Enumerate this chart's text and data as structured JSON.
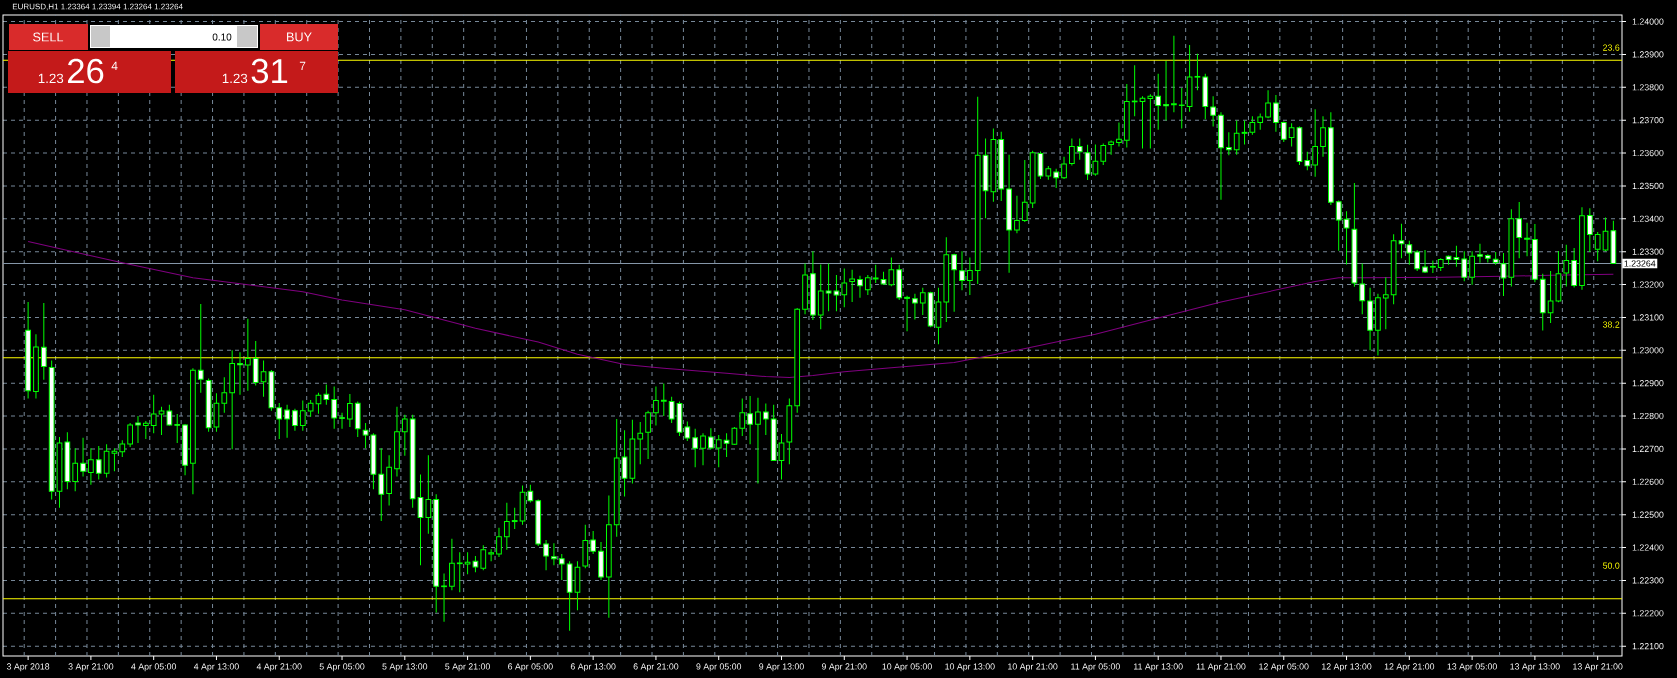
{
  "chart_data": {
    "type": "candlestick",
    "title": "EURUSD,H1  1.23364 1.23394 1.23264 1.23264",
    "color": "#00ff00",
    "categories": [
      "3 Apr 2018",
      null,
      null,
      null,
      null,
      null,
      null,
      null,
      "3 Apr 21:00",
      null,
      null,
      null,
      null,
      null,
      null,
      null,
      "4 Apr 05:00",
      null,
      null,
      null,
      null,
      null,
      null,
      null,
      "4 Apr 13:00",
      null,
      null,
      null,
      null,
      null,
      null,
      null,
      "4 Apr 21:00",
      null,
      null,
      null,
      null,
      null,
      null,
      null,
      "5 Apr 05:00",
      null,
      null,
      null,
      null,
      null,
      null,
      null,
      "5 Apr 13:00",
      null,
      null,
      null,
      null,
      null,
      null,
      null,
      "5 Apr 21:00",
      null,
      null,
      null,
      null,
      null,
      null,
      null,
      "6 Apr 05:00",
      null,
      null,
      null,
      null,
      null,
      null,
      null,
      "6 Apr 13:00",
      null,
      null,
      null,
      null,
      null,
      null,
      null,
      "6 Apr 21:00",
      null,
      null,
      null,
      null,
      null,
      null,
      null,
      "9 Apr 05:00",
      null,
      null,
      null,
      null,
      null,
      null,
      null,
      "9 Apr 13:00",
      null,
      null,
      null,
      null,
      null,
      null,
      null,
      "9 Apr 21:00",
      null,
      null,
      null,
      null,
      null,
      null,
      null,
      "10 Apr 05:00",
      null,
      null,
      null,
      null,
      null,
      null,
      null,
      "10 Apr 13:00",
      null,
      null,
      null,
      null,
      null,
      null,
      null,
      "10 Apr 21:00",
      null,
      null,
      null,
      null,
      null,
      null,
      null,
      "11 Apr 05:00",
      null,
      null,
      null,
      null,
      null,
      null,
      null,
      "11 Apr 13:00",
      null,
      null,
      null,
      null,
      null,
      null,
      null,
      "11 Apr 21:00",
      null,
      null,
      null,
      null,
      null,
      null,
      null,
      "12 Apr 05:00",
      null,
      null,
      null,
      null,
      null,
      null,
      null,
      "12 Apr 13:00",
      null,
      null,
      null,
      null,
      null,
      null,
      null,
      "12 Apr 21:00",
      null,
      null,
      null,
      null,
      null,
      null,
      null,
      "13 Apr 05:00",
      null,
      null,
      null,
      null,
      null,
      null,
      null,
      "13 Apr 13:00",
      null,
      null,
      null,
      null,
      null,
      null,
      null,
      "13 Apr 21:00",
      null,
      null
    ],
    "ohlc": [
      [
        1.23061,
        1.23147,
        1.22853,
        1.22877
      ],
      [
        1.22875,
        1.23049,
        1.22853,
        1.2301
      ],
      [
        1.23009,
        1.23144,
        1.2291,
        1.22951
      ],
      [
        1.22948,
        1.22969,
        1.22546,
        1.22571
      ],
      [
        1.22571,
        1.22736,
        1.22521,
        1.22718
      ],
      [
        1.22721,
        1.22751,
        1.22577,
        1.22601
      ],
      [
        1.22601,
        1.22702,
        1.22571,
        1.22656
      ],
      [
        1.22656,
        1.22734,
        1.22616,
        1.22632
      ],
      [
        1.22628,
        1.22702,
        1.22591,
        1.22667
      ],
      [
        1.22667,
        1.22709,
        1.22607,
        1.22626
      ],
      [
        1.22626,
        1.22714,
        1.22613,
        1.22693
      ],
      [
        1.22687,
        1.22702,
        1.22632,
        1.22693
      ],
      [
        1.22691,
        1.22726,
        1.22675,
        1.22715
      ],
      [
        1.22715,
        1.22779,
        1.22706,
        1.22773
      ],
      [
        1.22779,
        1.228,
        1.22718,
        1.22773
      ],
      [
        1.22771,
        1.22785,
        1.2273,
        1.22778
      ],
      [
        1.22771,
        1.22865,
        1.22748,
        1.22806
      ],
      [
        1.22806,
        1.22828,
        1.22742,
        1.22815
      ],
      [
        1.22815,
        1.22834,
        1.22771,
        1.22773
      ],
      [
        1.22774,
        1.22806,
        1.22718,
        1.22772
      ],
      [
        1.22773,
        1.22775,
        1.2262,
        1.2265
      ],
      [
        1.22656,
        1.22945,
        1.22562,
        1.22939
      ],
      [
        1.22939,
        1.23141,
        1.22871,
        1.22912
      ],
      [
        1.22908,
        1.22914,
        1.22752,
        1.22764
      ],
      [
        1.22767,
        1.22869,
        1.22752,
        1.22839
      ],
      [
        1.22839,
        1.22918,
        1.2281,
        1.22871
      ],
      [
        1.22871,
        1.23,
        1.22699,
        1.2296
      ],
      [
        1.2296,
        1.22994,
        1.22865,
        1.22956
      ],
      [
        1.22955,
        1.23096,
        1.22877,
        1.22975
      ],
      [
        1.22975,
        1.23028,
        1.22893,
        1.22902
      ],
      [
        1.22904,
        1.22969,
        1.22859,
        1.22935
      ],
      [
        1.22935,
        1.2294,
        1.22816,
        1.22825
      ],
      [
        1.22825,
        1.2284,
        1.2273,
        1.22791
      ],
      [
        1.22818,
        1.22834,
        1.22734,
        1.22791
      ],
      [
        1.22816,
        1.22822,
        1.22755,
        1.22771
      ],
      [
        1.22771,
        1.22847,
        1.22755,
        1.22816
      ],
      [
        1.22815,
        1.22849,
        1.22798,
        1.22839
      ],
      [
        1.22837,
        1.22871,
        1.22807,
        1.22863
      ],
      [
        1.22866,
        1.22896,
        1.22834,
        1.2285
      ],
      [
        1.2285,
        1.2289,
        1.22761,
        1.22794
      ],
      [
        1.22795,
        1.2281,
        1.22761,
        1.22793
      ],
      [
        1.22791,
        1.22867,
        1.22767,
        1.22838
      ],
      [
        1.22839,
        1.22844,
        1.22736,
        1.22761
      ],
      [
        1.22757,
        1.22779,
        1.22702,
        1.22742
      ],
      [
        1.22742,
        1.22748,
        1.22577,
        1.22623
      ],
      [
        1.22623,
        1.22702,
        1.22481,
        1.22562
      ],
      [
        1.22564,
        1.22681,
        1.22528,
        1.22644
      ],
      [
        1.2264,
        1.22828,
        1.22616,
        1.22752
      ],
      [
        1.22752,
        1.22804,
        1.22679,
        1.22791
      ],
      [
        1.22791,
        1.22804,
        1.22521,
        1.22548
      ],
      [
        1.22552,
        1.22622,
        1.22346,
        1.22491
      ],
      [
        1.22491,
        1.22681,
        1.22442,
        1.22546
      ],
      [
        1.22546,
        1.22562,
        1.22202,
        1.22282
      ],
      [
        1.22283,
        1.22321,
        1.22174,
        1.22281
      ],
      [
        1.22282,
        1.22427,
        1.2227,
        1.22352
      ],
      [
        1.22351,
        1.22386,
        1.22264,
        1.22353
      ],
      [
        1.2235,
        1.22386,
        1.22319,
        1.22355
      ],
      [
        1.22358,
        1.22374,
        1.22325,
        1.22341
      ],
      [
        1.22337,
        1.22407,
        1.22331,
        1.22393
      ],
      [
        1.2238,
        1.22395,
        1.22358,
        1.22384
      ],
      [
        1.2238,
        1.2246,
        1.22371,
        1.22433
      ],
      [
        1.22433,
        1.22536,
        1.22393,
        1.22479
      ],
      [
        1.22479,
        1.22521,
        1.22456,
        1.22482
      ],
      [
        1.22481,
        1.22589,
        1.22469,
        1.22568
      ],
      [
        1.22571,
        1.22591,
        1.22537,
        1.22542
      ],
      [
        1.22542,
        1.22546,
        1.22405,
        1.22411
      ],
      [
        1.22411,
        1.22423,
        1.22331,
        1.22374
      ],
      [
        1.22372,
        1.22413,
        1.22346,
        1.22366
      ],
      [
        1.22366,
        1.2238,
        1.22301,
        1.2235
      ],
      [
        1.2235,
        1.22358,
        1.22147,
        1.22264
      ],
      [
        1.22264,
        1.22358,
        1.22209,
        1.2234
      ],
      [
        1.22344,
        1.22469,
        1.22337,
        1.22421
      ],
      [
        1.22423,
        1.2245,
        1.2238,
        1.22389
      ],
      [
        1.22389,
        1.22417,
        1.22301,
        1.2231
      ],
      [
        1.2231,
        1.22558,
        1.22186,
        1.22469
      ],
      [
        1.22469,
        1.22791,
        1.22433,
        1.22672
      ],
      [
        1.22675,
        1.22757,
        1.22555,
        1.22611
      ],
      [
        1.22611,
        1.22789,
        1.22595,
        1.2273
      ],
      [
        1.2273,
        1.22782,
        1.22653,
        1.22748
      ],
      [
        1.22751,
        1.22816,
        1.22669,
        1.2281
      ],
      [
        1.2281,
        1.2289,
        1.22771,
        1.22847
      ],
      [
        1.22845,
        1.22899,
        1.228,
        1.22848
      ],
      [
        1.22844,
        1.22859,
        1.22779,
        1.22791
      ],
      [
        1.22838,
        1.22844,
        1.22739,
        1.22751
      ],
      [
        1.22767,
        1.22783,
        1.22724,
        1.22733
      ],
      [
        1.22734,
        1.22761,
        1.22644,
        1.22702
      ],
      [
        1.22702,
        1.22748,
        1.2265,
        1.22739
      ],
      [
        1.22736,
        1.22763,
        1.22699,
        1.22703
      ],
      [
        1.22703,
        1.22742,
        1.22644,
        1.22728
      ],
      [
        1.22726,
        1.22748,
        1.22675,
        1.22717
      ],
      [
        1.22714,
        1.22767,
        1.22712,
        1.22763
      ],
      [
        1.22763,
        1.22853,
        1.22739,
        1.2281
      ],
      [
        1.22807,
        1.22861,
        1.22714,
        1.22775
      ],
      [
        1.22775,
        1.22856,
        1.22595,
        1.22812
      ],
      [
        1.22812,
        1.22838,
        1.22742,
        1.22791
      ],
      [
        1.22791,
        1.22834,
        1.22663,
        1.22665
      ],
      [
        1.22665,
        1.22745,
        1.22607,
        1.22718
      ],
      [
        1.22721,
        1.22853,
        1.22653,
        1.22831
      ],
      [
        1.22831,
        1.23129,
        1.2281,
        1.23125
      ],
      [
        1.23125,
        1.23264,
        1.2311,
        1.23229
      ],
      [
        1.23233,
        1.23301,
        1.23092,
        1.23107
      ],
      [
        1.23107,
        1.23261,
        1.23064,
        1.2318
      ],
      [
        1.2318,
        1.23264,
        1.23119,
        1.23174
      ],
      [
        1.2318,
        1.23229,
        1.23119,
        1.23168
      ],
      [
        1.23169,
        1.23249,
        1.23131,
        1.23205
      ],
      [
        1.23209,
        1.23245,
        1.23147,
        1.23217
      ],
      [
        1.23215,
        1.23227,
        1.2316,
        1.23196
      ],
      [
        1.23184,
        1.23229,
        1.23168,
        1.23221
      ],
      [
        1.23217,
        1.2326,
        1.23205,
        1.2322
      ],
      [
        1.23215,
        1.23239,
        1.232,
        1.23202
      ],
      [
        1.23199,
        1.23282,
        1.23195,
        1.23245
      ],
      [
        1.23245,
        1.2326,
        1.23153,
        1.2316
      ],
      [
        1.23161,
        1.23166,
        1.23058,
        1.23158
      ],
      [
        1.23157,
        1.23172,
        1.23094,
        1.23144
      ],
      [
        1.23144,
        1.2319,
        1.23107,
        1.23175
      ],
      [
        1.23175,
        1.23178,
        1.2307,
        1.23074
      ],
      [
        1.2307,
        1.2319,
        1.23018,
        1.23147
      ],
      [
        1.23147,
        1.23344,
        1.23086,
        1.23291
      ],
      [
        1.23291,
        1.23294,
        1.23117,
        1.23245
      ],
      [
        1.23242,
        1.23301,
        1.23183,
        1.23212
      ],
      [
        1.23212,
        1.23282,
        1.23168,
        1.23243
      ],
      [
        1.23243,
        1.23771,
        1.23202,
        1.23593
      ],
      [
        1.23593,
        1.23644,
        1.23402,
        1.23485
      ],
      [
        1.23482,
        1.23675,
        1.23452,
        1.23641
      ],
      [
        1.23641,
        1.23665,
        1.23454,
        1.23491
      ],
      [
        1.23491,
        1.23595,
        1.23236,
        1.23366
      ],
      [
        1.23366,
        1.2347,
        1.23356,
        1.23395
      ],
      [
        1.23395,
        1.23579,
        1.2339,
        1.2345
      ],
      [
        1.23448,
        1.23607,
        1.23433,
        1.23601
      ],
      [
        1.23599,
        1.23605,
        1.23521,
        1.2353
      ],
      [
        1.2353,
        1.23561,
        1.23519,
        1.23552
      ],
      [
        1.23542,
        1.23552,
        1.23494,
        1.23525
      ],
      [
        1.23525,
        1.23589,
        1.23521,
        1.23567
      ],
      [
        1.23568,
        1.23644,
        1.23562,
        1.2362
      ],
      [
        1.2362,
        1.23644,
        1.2358,
        1.23604
      ],
      [
        1.23601,
        1.23625,
        1.23518,
        1.23536
      ],
      [
        1.23536,
        1.23626,
        1.23531,
        1.23575
      ],
      [
        1.23575,
        1.23629,
        1.23564,
        1.23623
      ],
      [
        1.23626,
        1.23638,
        1.23595,
        1.23634
      ],
      [
        1.23632,
        1.23693,
        1.2362,
        1.23642
      ],
      [
        1.23639,
        1.2381,
        1.23617,
        1.23757
      ],
      [
        1.23756,
        1.23867,
        1.23712,
        1.23758
      ],
      [
        1.23757,
        1.23773,
        1.23614,
        1.23767
      ],
      [
        1.23766,
        1.23779,
        1.23614,
        1.23773
      ],
      [
        1.23773,
        1.23841,
        1.23671,
        1.23745
      ],
      [
        1.23748,
        1.2388,
        1.23699,
        1.23744
      ],
      [
        1.23747,
        1.23957,
        1.23724,
        1.2375
      ],
      [
        1.23746,
        1.23798,
        1.23675,
        1.23745
      ],
      [
        1.23742,
        1.23929,
        1.23726,
        1.23831
      ],
      [
        1.23831,
        1.23902,
        1.23791,
        1.23833
      ],
      [
        1.23831,
        1.23841,
        1.23703,
        1.23742
      ],
      [
        1.2374,
        1.23773,
        1.23681,
        1.23715
      ],
      [
        1.23715,
        1.23724,
        1.23458,
        1.23616
      ],
      [
        1.23617,
        1.23663,
        1.23593,
        1.2361
      ],
      [
        1.2361,
        1.23699,
        1.23595,
        1.2366
      ],
      [
        1.2366,
        1.23699,
        1.23626,
        1.23663
      ],
      [
        1.23663,
        1.23712,
        1.23656,
        1.23693
      ],
      [
        1.23693,
        1.2372,
        1.23671,
        1.2371
      ],
      [
        1.2371,
        1.23791,
        1.23706,
        1.23752
      ],
      [
        1.23752,
        1.23777,
        1.23665,
        1.23693
      ],
      [
        1.23693,
        1.23696,
        1.23634,
        1.23642
      ],
      [
        1.23647,
        1.23691,
        1.2362,
        1.23677
      ],
      [
        1.23677,
        1.23681,
        1.23564,
        1.23574
      ],
      [
        1.23577,
        1.23604,
        1.23548,
        1.23561
      ],
      [
        1.23564,
        1.23733,
        1.23528,
        1.2362
      ],
      [
        1.2362,
        1.23712,
        1.23589,
        1.23677
      ],
      [
        1.23677,
        1.23724,
        1.23442,
        1.2345
      ],
      [
        1.23452,
        1.23456,
        1.23303,
        1.23396
      ],
      [
        1.23399,
        1.23423,
        1.23261,
        1.23372
      ],
      [
        1.23368,
        1.23509,
        1.23193,
        1.23205
      ],
      [
        1.23202,
        1.23264,
        1.2311,
        1.23151
      ],
      [
        1.2315,
        1.2319,
        1.23,
        1.23061
      ],
      [
        1.23061,
        1.23172,
        1.22984,
        1.2316
      ],
      [
        1.23159,
        1.23222,
        1.23064,
        1.23169
      ],
      [
        1.23169,
        1.23353,
        1.2314,
        1.23333
      ],
      [
        1.23333,
        1.23385,
        1.2328,
        1.23324
      ],
      [
        1.23321,
        1.23333,
        1.2326,
        1.23296
      ],
      [
        1.23299,
        1.23304,
        1.23241,
        1.23248
      ],
      [
        1.23253,
        1.23305,
        1.23235,
        1.23238
      ],
      [
        1.23253,
        1.23273,
        1.23235,
        1.23255
      ],
      [
        1.23252,
        1.2328,
        1.23241,
        1.23276
      ],
      [
        1.23286,
        1.23288,
        1.2326,
        1.23276
      ],
      [
        1.23282,
        1.23318,
        1.23254,
        1.23276
      ],
      [
        1.23278,
        1.23301,
        1.2321,
        1.23222
      ],
      [
        1.23222,
        1.23301,
        1.23199,
        1.23286
      ],
      [
        1.23291,
        1.23324,
        1.23266,
        1.23286
      ],
      [
        1.23288,
        1.23292,
        1.23267,
        1.2328
      ],
      [
        1.23277,
        1.23299,
        1.2326,
        1.23267
      ],
      [
        1.23263,
        1.23296,
        1.23165,
        1.2322
      ],
      [
        1.23222,
        1.23429,
        1.23194,
        1.234
      ],
      [
        1.234,
        1.23451,
        1.2328,
        1.23343
      ],
      [
        1.23341,
        1.23388,
        1.23286,
        1.23338
      ],
      [
        1.23337,
        1.23384,
        1.23207,
        1.23216
      ],
      [
        1.23216,
        1.23233,
        1.2306,
        1.23114
      ],
      [
        1.23114,
        1.23241,
        1.23083,
        1.2315
      ],
      [
        1.2315,
        1.23302,
        1.23146,
        1.23233
      ],
      [
        1.23235,
        1.23321,
        1.23194,
        1.23273
      ],
      [
        1.23273,
        1.23311,
        1.23191,
        1.23197
      ],
      [
        1.23197,
        1.23435,
        1.23184,
        1.23409
      ],
      [
        1.2341,
        1.23432,
        1.23299,
        1.23352
      ],
      [
        1.23307,
        1.2336,
        1.23271,
        1.23352
      ],
      [
        1.23305,
        1.23404,
        1.23301,
        1.23362
      ],
      [
        1.23364,
        1.23394,
        1.23264,
        1.23264
      ]
    ],
    "series": [
      {
        "type": "line",
        "color": "#800080",
        "values": [
          1.23331,
          null,
          null,
          null,
          null,
          null,
          null,
          null,
          null,
          null,
          null,
          null,
          1.23266,
          null,
          null,
          null,
          null,
          null,
          null,
          null,
          null,
          1.23221,
          null,
          null,
          null,
          null,
          null,
          null,
          null,
          null,
          null,
          null,
          null,
          null,
          null,
          1.23178,
          null,
          null,
          null,
          null,
          1.23153,
          null,
          null,
          null,
          null,
          null,
          null,
          null,
          1.23123,
          null,
          null,
          null,
          null,
          null,
          null,
          null,
          null,
          1.23067,
          null,
          null,
          null,
          null,
          null,
          null,
          null,
          1.23025,
          null,
          null,
          null,
          null,
          1.22988,
          null,
          null,
          null,
          null,
          null,
          1.22957,
          null,
          null,
          null,
          null,
          1.22945,
          null,
          null,
          null,
          null,
          null,
          null,
          null,
          1.2293,
          null,
          null,
          null,
          null,
          1.2292,
          null,
          null,
          1.22917,
          null,
          null,
          1.22923,
          null,
          null,
          null,
          1.22935,
          null,
          null,
          null,
          null,
          null,
          1.22947,
          null,
          null,
          null,
          null,
          null,
          null,
          null,
          1.22963,
          null,
          null,
          null,
          null,
          null,
          null,
          null,
          1.23,
          null,
          null,
          null,
          null,
          1.23025,
          null,
          null,
          null,
          null,
          1.23049,
          null,
          null,
          null,
          null,
          null,
          null,
          null,
          null,
          1.23104,
          null,
          null,
          null,
          null,
          null,
          null,
          1.23147,
          null,
          null,
          null,
          null,
          null,
          1.23178,
          null,
          null,
          null,
          null,
          null,
          1.23209,
          null,
          null,
          1.23221,
          null,
          null,
          1.23221,
          null,
          null,
          null,
          null,
          null,
          null,
          null,
          null,
          null,
          1.23222,
          null,
          null,
          null,
          null,
          null,
          null,
          null,
          1.23225,
          null,
          null,
          null,
          null,
          null,
          1.23228,
          null,
          null,
          null,
          null,
          null,
          null,
          null,
          1.23231
        ]
      }
    ],
    "ylim": [
      1.2207,
      1.2402
    ],
    "yticks": [
      {
        "value": 1.221,
        "label": "1.22100"
      },
      {
        "value": 1.222,
        "label": "1.22200"
      },
      {
        "value": 1.223,
        "label": "1.22300"
      },
      {
        "value": 1.224,
        "label": "1.22400"
      },
      {
        "value": 1.225,
        "label": "1.22500"
      },
      {
        "value": 1.226,
        "label": "1.22600"
      },
      {
        "value": 1.227,
        "label": "1.22700"
      },
      {
        "value": 1.228,
        "label": "1.22800"
      },
      {
        "value": 1.229,
        "label": "1.22900"
      },
      {
        "value": 1.23,
        "label": "1.23000"
      },
      {
        "value": 1.231,
        "label": "1.23100"
      },
      {
        "value": 1.232,
        "label": "1.23200"
      },
      {
        "value": 1.233,
        "label": "1.23300"
      },
      {
        "value": 1.234,
        "label": "1.23400"
      },
      {
        "value": 1.235,
        "label": "1.23500"
      },
      {
        "value": 1.236,
        "label": "1.23600"
      },
      {
        "value": 1.237,
        "label": "1.23700"
      },
      {
        "value": 1.238,
        "label": "1.23800"
      },
      {
        "value": 1.239,
        "label": "1.23900"
      },
      {
        "value": 1.24,
        "label": "1.24000"
      }
    ],
    "grid": true,
    "ref_lines": [
      {
        "axis": "y",
        "value": 1.23882,
        "color": "#ffff00"
      },
      {
        "axis": "y",
        "value": 1.22977,
        "color": "#ffff00"
      },
      {
        "axis": "y",
        "value": 1.22244,
        "color": "#ffff00"
      },
      {
        "axis": "y",
        "value": 1.23264,
        "label": "1.23264",
        "color": "#8596a8"
      }
    ],
    "annotations": [
      "SELL",
      "0.10",
      "BUY",
      "1.23",
      "26",
      "4",
      "1.23",
      "31",
      "7",
      "23.6",
      "38.2",
      "50.0"
    ]
  }
}
